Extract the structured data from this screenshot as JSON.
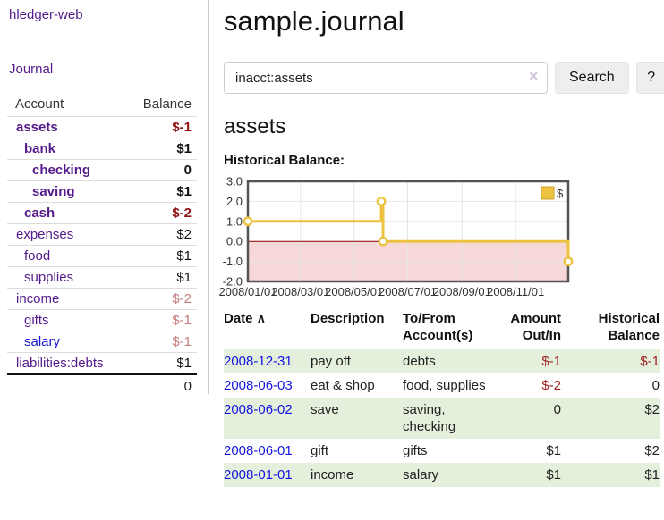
{
  "app": {
    "title": "hledger-web",
    "nav_journal": "Journal"
  },
  "sidebar": {
    "header": {
      "account": "Account",
      "balance": "Balance"
    },
    "accounts": [
      {
        "name": "assets",
        "depth": 1,
        "balance": "$-1",
        "bold": true,
        "balance_class": "bal-neg-strong"
      },
      {
        "name": "bank",
        "depth": 2,
        "balance": "$1",
        "bold": true,
        "balance_class": "bal-pos"
      },
      {
        "name": "checking",
        "depth": 3,
        "balance": "0",
        "bold": true,
        "balance_class": "bal-pos"
      },
      {
        "name": "saving",
        "depth": 3,
        "balance": "$1",
        "bold": true,
        "balance_class": "bal-pos"
      },
      {
        "name": "cash",
        "depth": 2,
        "balance": "$-2",
        "bold": true,
        "balance_class": "bal-neg-strong"
      },
      {
        "name": "expenses",
        "depth": 1,
        "balance": "$2",
        "bold": false,
        "balance_class": "bal-pos"
      },
      {
        "name": "food",
        "depth": 2,
        "balance": "$1",
        "bold": false,
        "balance_class": "bal-pos"
      },
      {
        "name": "supplies",
        "depth": 2,
        "balance": "$1",
        "bold": false,
        "balance_class": "bal-pos"
      },
      {
        "name": "income",
        "depth": 1,
        "balance": "$-2",
        "bold": false,
        "balance_class": "bal-neg-soft"
      },
      {
        "name": "gifts",
        "depth": 2,
        "balance": "$-1",
        "bold": false,
        "balance_class": "bal-neg-soft"
      },
      {
        "name": "salary",
        "depth": 2,
        "balance": "$-1",
        "bold": false,
        "balance_class": "bal-neg-soft",
        "link_blue": true
      },
      {
        "name": "liabilities:debts",
        "depth": 1,
        "balance": "$1",
        "bold": false,
        "balance_class": "bal-pos"
      }
    ],
    "total": "0"
  },
  "main": {
    "title": "sample.journal",
    "search": {
      "value": "inacct:assets",
      "clear_icon": "✕",
      "button": "Search",
      "help_button": "?"
    },
    "account_heading": "assets"
  },
  "chart_data": {
    "type": "line",
    "style": "step",
    "title": "Historical Balance:",
    "series": [
      {
        "name": "$",
        "color": "#edc240",
        "points": [
          [
            "2008-01-01",
            1
          ],
          [
            "2008-06-01",
            2
          ],
          [
            "2008-06-03",
            0
          ],
          [
            "2008-12-31",
            -1
          ]
        ]
      }
    ],
    "x_range": [
      "2008-01-01",
      "2008-12-31"
    ],
    "x_ticks": [
      {
        "label": "2008/01/01",
        "date": "2008-01-01"
      },
      {
        "label": "2008/03/01",
        "date": "2008-03-01"
      },
      {
        "label": "2008/05/01",
        "date": "2008-05-01"
      },
      {
        "label": "2008/07/01",
        "date": "2008-07-01"
      },
      {
        "label": "2008/09/01",
        "date": "2008-09-01"
      },
      {
        "label": "2008/11/01",
        "date": "2008-11-01"
      }
    ],
    "y_ticks": [
      {
        "label": "3.0",
        "value": 3
      },
      {
        "label": "2.0",
        "value": 2
      },
      {
        "label": "1.0",
        "value": 1
      },
      {
        "label": "0.0",
        "value": 0
      },
      {
        "label": "-1.0",
        "value": -1
      },
      {
        "label": "-2.0",
        "value": -2
      }
    ],
    "ylim": [
      -2,
      3
    ],
    "legend": {
      "label": "$",
      "position": "top-right"
    },
    "grid": true,
    "colors": {
      "negative_region": "#f7d8d8",
      "zero_line": "#8b0000",
      "grid_line": "#e6e6e6",
      "border": "#545454"
    }
  },
  "register": {
    "columns": [
      "Date",
      "Description",
      "To/From Account(s)",
      "Amount Out/In",
      "Historical Balance"
    ],
    "sort_icon": "∧",
    "rows": [
      {
        "date": "2008-12-31",
        "description": "pay off",
        "accounts": "debts",
        "amount": "$-1",
        "amount_neg": true,
        "balance": "$-1",
        "balance_neg": true
      },
      {
        "date": "2008-06-03",
        "description": "eat & shop",
        "accounts": "food, supplies",
        "amount": "$-2",
        "amount_neg": true,
        "balance": "0",
        "balance_neg": false
      },
      {
        "date": "2008-06-02",
        "description": "save",
        "accounts": "saving, checking",
        "amount": "0",
        "amount_neg": false,
        "balance": "$2",
        "balance_neg": false
      },
      {
        "date": "2008-06-01",
        "description": "gift",
        "accounts": "gifts",
        "amount": "$1",
        "amount_neg": false,
        "balance": "$2",
        "balance_neg": false
      },
      {
        "date": "2008-01-01",
        "description": "income",
        "accounts": "salary",
        "amount": "$1",
        "amount_neg": false,
        "balance": "$1",
        "balance_neg": false
      }
    ]
  }
}
